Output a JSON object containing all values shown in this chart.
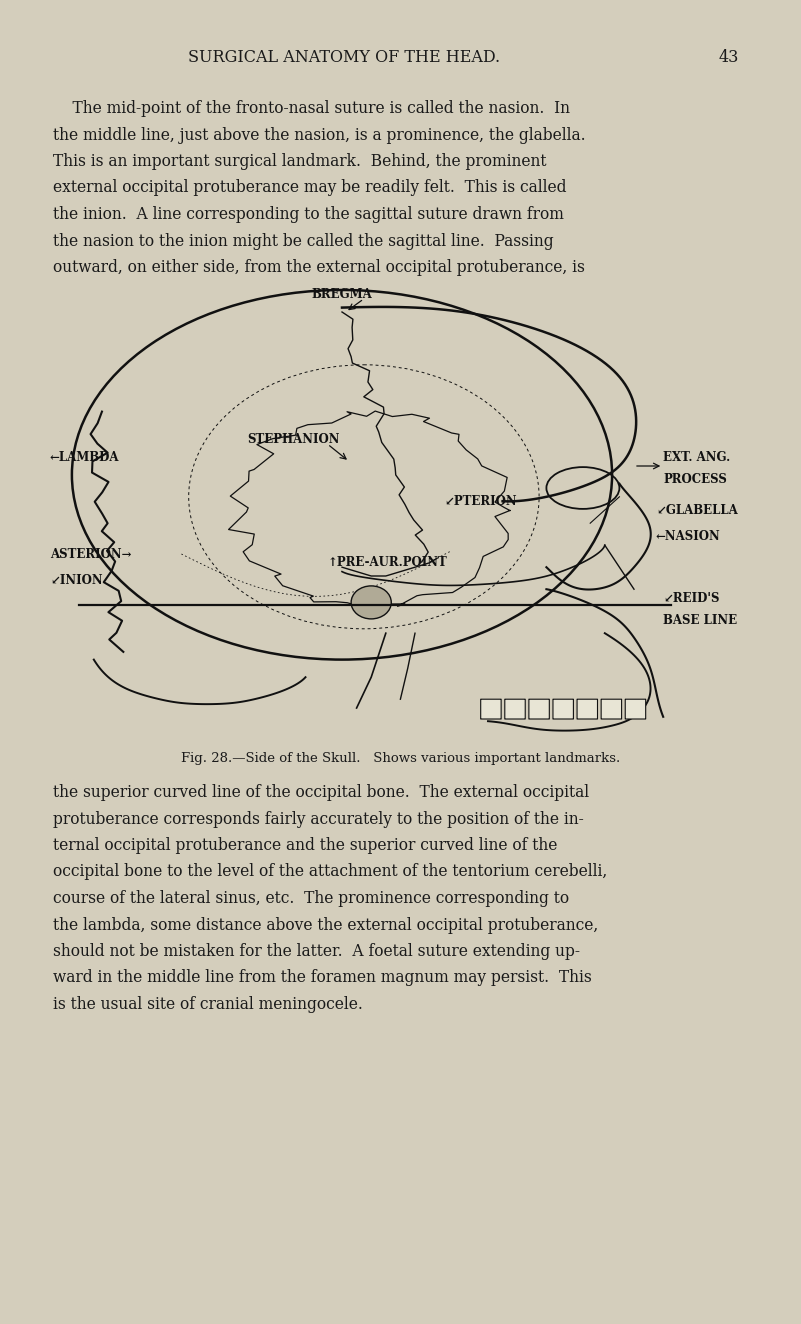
{
  "bg_color": "#d4cebc",
  "text_color": "#1a1a1a",
  "header_text": "SURGICAL ANATOMY OF THE HEAD.",
  "page_number": "43",
  "header_fontsize": 11.5,
  "body_fontsize": 11.2,
  "caption_fontsize": 9.5,
  "para1_lines": [
    "    The mid-point of the fronto-nasal suture is called the nasion.  In",
    "the middle line, just above the nasion, is a prominence, the glabella.",
    "This is an important surgical landmark.  Behind, the prominent",
    "external occipital protuberance may be readily felt.  This is called",
    "the inion.  A line corresponding to the sagittal suture drawn from",
    "the nasion to the inion might be called the sagittal line.  Passing",
    "outward, on either side, from the external occipital protuberance, is"
  ],
  "para2_lines": [
    "the superior curved line of the occipital bone.  The external occipital",
    "protuberance corresponds fairly accurately to the position of the in-",
    "ternal occipital protuberance and the superior curved line of the",
    "occipital bone to the level of the attachment of the tentorium cerebelli,",
    "course of the lateral sinus, etc.  The prominence corresponding to",
    "the lambda, some distance above the external occipital protuberance,",
    "should not be mistaken for the latter.  A foetal suture extending up-",
    "ward in the middle line from the foramen magnum may persist.  This",
    "is the usual site of cranial meningocele."
  ],
  "fig_caption": "Fig. 28.—Side of the Skull.   Shows various important landmarks."
}
